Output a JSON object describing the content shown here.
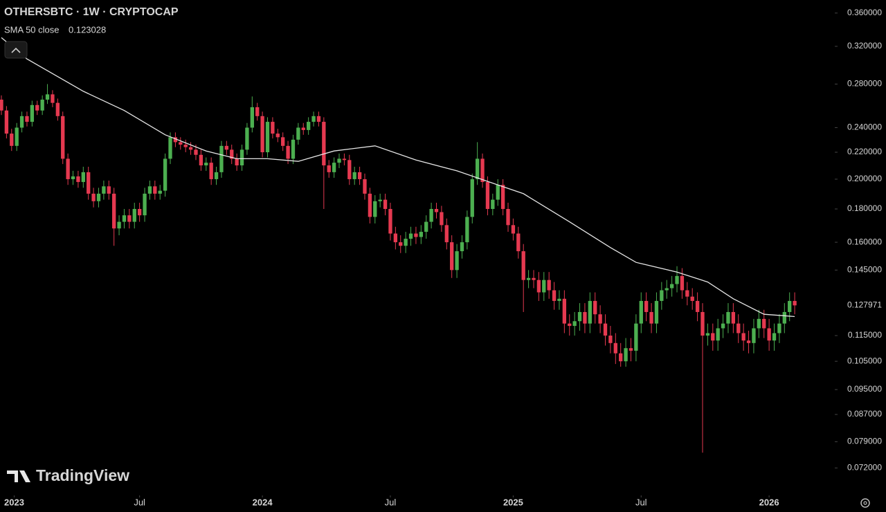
{
  "chart_data": {
    "type": "candlestick",
    "title": "OTHERSBTC · 1W · CRYPTOCAP",
    "watermark": "TradingView",
    "log_scale": true,
    "up_color": "#4caf50",
    "down_color": "#e53950",
    "xlim": [
      -0.27,
      162.02
    ],
    "ylim": [
      0.0663,
      0.377
    ],
    "xticks": [
      {
        "value": 2.5,
        "label": "2023"
      },
      {
        "value": 27,
        "label": "Jul"
      },
      {
        "value": 51,
        "label": "2024"
      },
      {
        "value": 76,
        "label": "Jul"
      },
      {
        "value": 100,
        "label": "2025"
      },
      {
        "value": 125,
        "label": "Jul"
      },
      {
        "value": 150,
        "label": "2026"
      }
    ],
    "yticks": [
      {
        "value": 0.36,
        "label": "0.360000"
      },
      {
        "value": 0.32,
        "label": "0.320000"
      },
      {
        "value": 0.28,
        "label": "0.280000"
      },
      {
        "value": 0.24,
        "label": "0.240000"
      },
      {
        "value": 0.22,
        "label": "0.220000"
      },
      {
        "value": 0.2,
        "label": "0.200000"
      },
      {
        "value": 0.18,
        "label": "0.180000"
      },
      {
        "value": 0.16,
        "label": "0.160000"
      },
      {
        "value": 0.145,
        "label": "0.145000"
      },
      {
        "value": 0.115,
        "label": "0.115000"
      },
      {
        "value": 0.105,
        "label": "0.105000"
      },
      {
        "value": 0.095,
        "label": "0.095000"
      },
      {
        "value": 0.087,
        "label": "0.087000"
      },
      {
        "value": 0.079,
        "label": "0.079000"
      },
      {
        "value": 0.072,
        "label": "0.072000"
      }
    ],
    "open": [
      0.265,
      0.255,
      0.235,
      0.225,
      0.24,
      0.25,
      0.245,
      0.26,
      0.255,
      0.265,
      0.27,
      0.262,
      0.25,
      0.215,
      0.2,
      0.202,
      0.198,
      0.205,
      0.19,
      0.185,
      0.19,
      0.195,
      0.19,
      0.168,
      0.172,
      0.176,
      0.172,
      0.18,
      0.176,
      0.19,
      0.195,
      0.19,
      0.192,
      0.215,
      0.232,
      0.228,
      0.226,
      0.224,
      0.222,
      0.218,
      0.21,
      0.212,
      0.2,
      0.205,
      0.225,
      0.222,
      0.215,
      0.21,
      0.222,
      0.24,
      0.258,
      0.25,
      0.22,
      0.245,
      0.235,
      0.232,
      0.225,
      0.215,
      0.23,
      0.24,
      0.238,
      0.245,
      0.25,
      0.245,
      0.21,
      0.205,
      0.212,
      0.215,
      0.214,
      0.2,
      0.205,
      0.2,
      0.19,
      0.175,
      0.185,
      0.186,
      0.18,
      0.165,
      0.16,
      0.158,
      0.162,
      0.165,
      0.163,
      0.166,
      0.172,
      0.18,
      0.178,
      0.17,
      0.16,
      0.145,
      0.155,
      0.16,
      0.175,
      0.2,
      0.215,
      0.198,
      0.18,
      0.186,
      0.196,
      0.18,
      0.17,
      0.165,
      0.155,
      0.14,
      0.141,
      0.14,
      0.134,
      0.14,
      0.135,
      0.13,
      0.131,
      0.12,
      0.119,
      0.121,
      0.125,
      0.12,
      0.13,
      0.124,
      0.12,
      0.115,
      0.112,
      0.108,
      0.105,
      0.11,
      0.109,
      0.12,
      0.13,
      0.125,
      0.12,
      0.13,
      0.135,
      0.136,
      0.138,
      0.142,
      0.135,
      0.132,
      0.13,
      0.125,
      0.115,
      0.116,
      0.113,
      0.118,
      0.12,
      0.125,
      0.12,
      0.116,
      0.113,
      0.112,
      0.118,
      0.122,
      0.118,
      0.113,
      0.116,
      0.12,
      0.125,
      0.13
    ],
    "high": [
      0.269,
      0.259,
      0.239,
      0.244,
      0.254,
      0.254,
      0.264,
      0.264,
      0.269,
      0.28,
      0.274,
      0.266,
      0.254,
      0.219,
      0.206,
      0.206,
      0.209,
      0.209,
      0.194,
      0.194,
      0.199,
      0.199,
      0.194,
      0.176,
      0.18,
      0.18,
      0.184,
      0.184,
      0.194,
      0.199,
      0.199,
      0.196,
      0.219,
      0.236,
      0.236,
      0.232,
      0.23,
      0.228,
      0.226,
      0.222,
      0.216,
      0.216,
      0.209,
      0.229,
      0.229,
      0.226,
      0.219,
      0.226,
      0.244,
      0.268,
      0.262,
      0.254,
      0.249,
      0.249,
      0.239,
      0.236,
      0.229,
      0.234,
      0.244,
      0.244,
      0.249,
      0.254,
      0.254,
      0.249,
      0.214,
      0.216,
      0.219,
      0.219,
      0.218,
      0.209,
      0.209,
      0.204,
      0.194,
      0.189,
      0.19,
      0.19,
      0.184,
      0.169,
      0.164,
      0.166,
      0.169,
      0.169,
      0.17,
      0.176,
      0.184,
      0.184,
      0.182,
      0.174,
      0.164,
      0.159,
      0.164,
      0.179,
      0.204,
      0.228,
      0.219,
      0.202,
      0.19,
      0.2,
      0.2,
      0.184,
      0.174,
      0.169,
      0.159,
      0.145,
      0.145,
      0.144,
      0.144,
      0.144,
      0.139,
      0.135,
      0.135,
      0.124,
      0.125,
      0.129,
      0.129,
      0.134,
      0.134,
      0.128,
      0.124,
      0.119,
      0.116,
      0.112,
      0.114,
      0.114,
      0.124,
      0.134,
      0.134,
      0.129,
      0.134,
      0.139,
      0.14,
      0.142,
      0.147,
      0.146,
      0.139,
      0.136,
      0.134,
      0.129,
      0.12,
      0.12,
      0.122,
      0.124,
      0.129,
      0.129,
      0.124,
      0.12,
      0.117,
      0.122,
      0.126,
      0.126,
      0.122,
      0.12,
      0.124,
      0.129,
      0.134,
      0.134
    ],
    "low": [
      0.251,
      0.231,
      0.221,
      0.221,
      0.236,
      0.241,
      0.241,
      0.251,
      0.251,
      0.261,
      0.258,
      0.246,
      0.211,
      0.196,
      0.196,
      0.194,
      0.194,
      0.186,
      0.181,
      0.181,
      0.186,
      0.186,
      0.158,
      0.164,
      0.168,
      0.168,
      0.168,
      0.172,
      0.172,
      0.186,
      0.186,
      0.186,
      0.188,
      0.211,
      0.224,
      0.222,
      0.22,
      0.218,
      0.214,
      0.206,
      0.206,
      0.196,
      0.196,
      0.201,
      0.218,
      0.211,
      0.206,
      0.206,
      0.218,
      0.236,
      0.246,
      0.216,
      0.216,
      0.231,
      0.228,
      0.221,
      0.211,
      0.211,
      0.226,
      0.234,
      0.234,
      0.241,
      0.241,
      0.18,
      0.201,
      0.201,
      0.208,
      0.21,
      0.196,
      0.196,
      0.196,
      0.186,
      0.171,
      0.171,
      0.181,
      0.176,
      0.161,
      0.156,
      0.154,
      0.154,
      0.158,
      0.159,
      0.159,
      0.162,
      0.168,
      0.174,
      0.166,
      0.156,
      0.141,
      0.141,
      0.151,
      0.156,
      0.171,
      0.196,
      0.194,
      0.176,
      0.176,
      0.182,
      0.176,
      0.166,
      0.161,
      0.151,
      0.125,
      0.136,
      0.136,
      0.13,
      0.13,
      0.131,
      0.126,
      0.126,
      0.116,
      0.115,
      0.115,
      0.117,
      0.116,
      0.116,
      0.12,
      0.116,
      0.111,
      0.108,
      0.104,
      0.103,
      0.103,
      0.105,
      0.105,
      0.116,
      0.121,
      0.116,
      0.116,
      0.126,
      0.131,
      0.132,
      0.134,
      0.131,
      0.128,
      0.126,
      0.121,
      0.076,
      0.111,
      0.109,
      0.109,
      0.114,
      0.116,
      0.116,
      0.112,
      0.109,
      0.108,
      0.108,
      0.114,
      0.114,
      0.109,
      0.109,
      0.112,
      0.116,
      0.121,
      0.124
    ],
    "close": [
      0.255,
      0.235,
      0.225,
      0.24,
      0.25,
      0.245,
      0.26,
      0.255,
      0.265,
      0.27,
      0.262,
      0.25,
      0.215,
      0.2,
      0.202,
      0.198,
      0.205,
      0.19,
      0.185,
      0.19,
      0.195,
      0.19,
      0.168,
      0.172,
      0.176,
      0.172,
      0.18,
      0.176,
      0.19,
      0.195,
      0.19,
      0.192,
      0.215,
      0.232,
      0.228,
      0.226,
      0.224,
      0.222,
      0.218,
      0.21,
      0.212,
      0.2,
      0.205,
      0.225,
      0.222,
      0.215,
      0.21,
      0.222,
      0.24,
      0.258,
      0.25,
      0.22,
      0.245,
      0.235,
      0.232,
      0.225,
      0.215,
      0.23,
      0.24,
      0.238,
      0.245,
      0.25,
      0.245,
      0.21,
      0.205,
      0.212,
      0.215,
      0.214,
      0.2,
      0.205,
      0.2,
      0.19,
      0.175,
      0.185,
      0.186,
      0.18,
      0.165,
      0.16,
      0.158,
      0.162,
      0.165,
      0.163,
      0.166,
      0.172,
      0.18,
      0.178,
      0.17,
      0.16,
      0.145,
      0.155,
      0.16,
      0.175,
      0.2,
      0.215,
      0.198,
      0.18,
      0.186,
      0.196,
      0.18,
      0.17,
      0.165,
      0.155,
      0.14,
      0.141,
      0.14,
      0.134,
      0.14,
      0.135,
      0.13,
      0.131,
      0.12,
      0.119,
      0.121,
      0.125,
      0.12,
      0.13,
      0.124,
      0.12,
      0.115,
      0.112,
      0.108,
      0.105,
      0.11,
      0.109,
      0.12,
      0.13,
      0.125,
      0.12,
      0.13,
      0.135,
      0.136,
      0.138,
      0.142,
      0.135,
      0.132,
      0.13,
      0.125,
      0.115,
      0.116,
      0.113,
      0.118,
      0.12,
      0.125,
      0.12,
      0.116,
      0.113,
      0.112,
      0.118,
      0.122,
      0.118,
      0.113,
      0.116,
      0.12,
      0.125,
      0.13,
      0.127971
    ],
    "sma": {
      "name": "SMA 50 close",
      "color": "#e6e6e6",
      "x": [
        0,
        5,
        16,
        24,
        32,
        40,
        46,
        52,
        58,
        65,
        73,
        81,
        89,
        97,
        102,
        111,
        119,
        124,
        132,
        138,
        143,
        149,
        155
      ],
      "values": [
        0.33,
        0.306,
        0.273,
        0.255,
        0.234,
        0.221,
        0.215,
        0.215,
        0.213,
        0.221,
        0.225,
        0.214,
        0.206,
        0.196,
        0.19,
        0.172,
        0.157,
        0.149,
        0.144,
        0.139,
        0.131,
        0.124,
        0.123028
      ]
    }
  }
}
